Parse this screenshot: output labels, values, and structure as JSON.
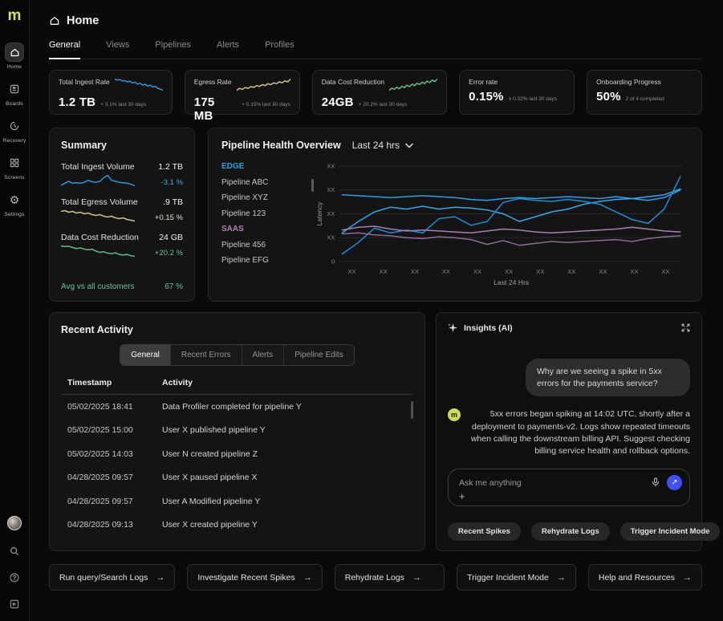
{
  "brand": {
    "logo_text": "m",
    "logo_color": "#d6e24f"
  },
  "sidebar": {
    "items": [
      {
        "label": "Home",
        "active": true
      },
      {
        "label": "Boards",
        "active": false
      },
      {
        "label": "Recovery",
        "active": false
      },
      {
        "label": "Screens",
        "active": false
      },
      {
        "label": "Settings",
        "active": false
      }
    ]
  },
  "header": {
    "title": "Home"
  },
  "tabs": {
    "items": [
      {
        "label": "General",
        "active": true
      },
      {
        "label": "Views",
        "active": false
      },
      {
        "label": "Pipelines",
        "active": false
      },
      {
        "label": "Alerts",
        "active": false
      },
      {
        "label": "Profiles",
        "active": false
      }
    ]
  },
  "kpis": [
    {
      "label": "Total Ingest Rate",
      "value": "1.2 TB",
      "sub": "+ 3.1% last 30 days",
      "spark": {
        "color": "#2e93d8",
        "values": [
          72,
          70,
          71,
          68,
          69,
          66,
          68,
          64,
          66,
          62,
          64,
          60,
          62,
          58,
          60,
          56,
          58,
          54,
          52,
          50
        ]
      }
    },
    {
      "label": "Egress Rate",
      "value": "175 MB",
      "sub": "+ 0.15% last 30 days",
      "spark": {
        "color": "#cdbd8a",
        "values": [
          30,
          34,
          32,
          36,
          34,
          38,
          36,
          40,
          38,
          42,
          40,
          44,
          42,
          46,
          44,
          48,
          46,
          50,
          48,
          54
        ]
      }
    },
    {
      "label": "Data Cost Reduction",
      "value": "24GB",
      "sub": "+ 20.2% last 30 days",
      "spark": {
        "color": "#5fbd8b",
        "values": [
          34,
          38,
          36,
          40,
          37,
          42,
          39,
          44,
          41,
          46,
          43,
          48,
          45,
          50,
          47,
          52,
          49,
          54,
          51,
          56
        ]
      }
    },
    {
      "label": "Error rate",
      "value": "0.15%",
      "sub": "± 0.02% last 30 days",
      "spark": null
    },
    {
      "label": "Onboarding Progress",
      "value": "50%",
      "sub": "2 of 4 completed",
      "spark": null
    }
  ],
  "summary": {
    "title": "Summary",
    "metrics": [
      {
        "label": "Total Ingest Volume",
        "value": "1.2 TB",
        "delta": "-3.1 %",
        "delta_color": "#4da4e0",
        "spark": {
          "color": "#2e93d8",
          "values": [
            42,
            46,
            50,
            46,
            47,
            46,
            48,
            52,
            49,
            48,
            50,
            57,
            62,
            52,
            50,
            48,
            47,
            46,
            44,
            41
          ]
        }
      },
      {
        "label": "Total Egress Volume",
        "value": ".9 TB",
        "delta": "+0.15 %",
        "delta_color": "#e6e2d4",
        "spark": {
          "color": "#cdbd8a",
          "values": [
            58,
            59,
            57,
            58,
            56,
            57,
            55,
            56,
            54,
            53,
            54,
            52,
            51,
            52,
            50,
            49,
            50,
            48,
            47,
            46
          ]
        }
      },
      {
        "label": "Data Cost Reduction",
        "value": "24 GB",
        "delta": "+20.2 %",
        "delta_color": "#67c493",
        "spark": {
          "color": "#5fbd8b",
          "values": [
            62,
            60,
            61,
            57,
            54,
            56,
            52,
            50,
            52,
            46,
            42,
            44,
            40,
            38,
            41,
            36,
            34,
            36,
            32,
            30
          ]
        }
      }
    ],
    "footer": {
      "label": "Avg vs all customers",
      "value": "67 %",
      "color": "#67c493"
    }
  },
  "pipeline_health": {
    "title": "Pipeline Health Overview",
    "range": "Last 24 hrs",
    "list": [
      {
        "label": "EDGE",
        "type": "group",
        "color": "#369ce0"
      },
      {
        "label": "Pipeline ABC",
        "type": "item",
        "color": ""
      },
      {
        "label": "Pipeline XYZ",
        "type": "item",
        "color": ""
      },
      {
        "label": "Pipeline 123",
        "type": "item",
        "color": ""
      },
      {
        "label": "SAAS",
        "type": "group",
        "color": "#b083b6"
      },
      {
        "label": "Pipeline 456",
        "type": "item",
        "color": ""
      },
      {
        "label": "Pipeline EFG",
        "type": "item",
        "color": ""
      }
    ],
    "chart_data": {
      "type": "line",
      "ylabel": "Latency",
      "xlabel": "Last 24 Hrs",
      "ylim": [
        0,
        100
      ],
      "y_ticks": [
        "XX",
        "XX",
        "XX",
        "XX",
        "0"
      ],
      "x_ticks": [
        "XX",
        "XX",
        "XX",
        "XX",
        "XX",
        "XX",
        "XX",
        "XX",
        "XX",
        "XX",
        "XX"
      ],
      "grid": true,
      "series": [
        {
          "name": "Pipeline ABC",
          "color": "#2f9fe6",
          "values": [
            70,
            69,
            68,
            67,
            68,
            69,
            68,
            67,
            65,
            64,
            66,
            67,
            66,
            67,
            68,
            67,
            66,
            68,
            66,
            64,
            67,
            75
          ]
        },
        {
          "name": "Pipeline XYZ",
          "color": "#37a7ee",
          "values": [
            30,
            42,
            52,
            57,
            55,
            58,
            55,
            57,
            56,
            54,
            50,
            42,
            47,
            52,
            55,
            60,
            63,
            65,
            66,
            68,
            70,
            76
          ]
        },
        {
          "name": "Pipeline 123",
          "color": "#1f8cd6",
          "values": [
            8,
            20,
            35,
            30,
            33,
            30,
            45,
            47,
            38,
            42,
            62,
            66,
            64,
            63,
            65,
            63,
            60,
            52,
            44,
            40,
            55,
            89
          ]
        },
        {
          "name": "Pipeline 456",
          "color": "#a87fb0",
          "values": [
            33,
            36,
            37,
            34,
            32,
            33,
            32,
            31,
            30,
            32,
            34,
            33,
            31,
            30,
            31,
            32,
            33,
            34,
            36,
            34,
            32,
            31
          ]
        },
        {
          "name": "Pipeline EFG",
          "color": "#8f6a99",
          "values": [
            29,
            30,
            28,
            27,
            25,
            24,
            26,
            25,
            23,
            18,
            22,
            17,
            19,
            21,
            20,
            21,
            22,
            23,
            21,
            24,
            26,
            27
          ]
        }
      ]
    }
  },
  "recent_activity": {
    "title": "Recent Activity",
    "tabs": [
      {
        "label": "General",
        "active": true
      },
      {
        "label": "Recent Errors",
        "active": false
      },
      {
        "label": "Alerts",
        "active": false
      },
      {
        "label": "Pipeline Edits",
        "active": false
      }
    ],
    "columns": [
      "Timestamp",
      "Activity"
    ],
    "rows": [
      [
        "05/02/2025 18:41",
        "Data Profiler completed for pipeline Y"
      ],
      [
        "05/02/2025 15:00",
        "User X published pipeline Y"
      ],
      [
        "05/02/2025 14:03",
        "User N created pipeline Z"
      ],
      [
        "04/28/2025 09:57",
        "User X paused pipeline X"
      ],
      [
        "04/28/2025 09:57",
        "User A Modified pipeline Y"
      ],
      [
        "04/28/2025 09:13",
        "User X created pipeline Y"
      ]
    ]
  },
  "insights": {
    "title": "Insights (AI)",
    "user_message": "Why are we seeing a spike in 5xx errors for the payments service?",
    "assistant_avatar": "m",
    "assistant_message": "5xx errors began spiking at 14:02 UTC, shortly after a deployment to payments-v2. Logs show repeated timeouts when calling the downstream billing API. Suggest checking billing service health and rollback options.",
    "input_placeholder": "Ask me anything",
    "plus_label": "+",
    "send_glyph": "↗",
    "send_color": "#4150f0",
    "chips": [
      "Recent Spikes",
      "Rehydrate Logs",
      "Trigger Incident Mode"
    ]
  },
  "footer_actions": [
    "Run query/Search Logs",
    "Investigate Recent Spikes",
    "Rehydrate Logs",
    "Trigger Incident Mode",
    "Help and Resources"
  ],
  "footer_arrow": "→"
}
